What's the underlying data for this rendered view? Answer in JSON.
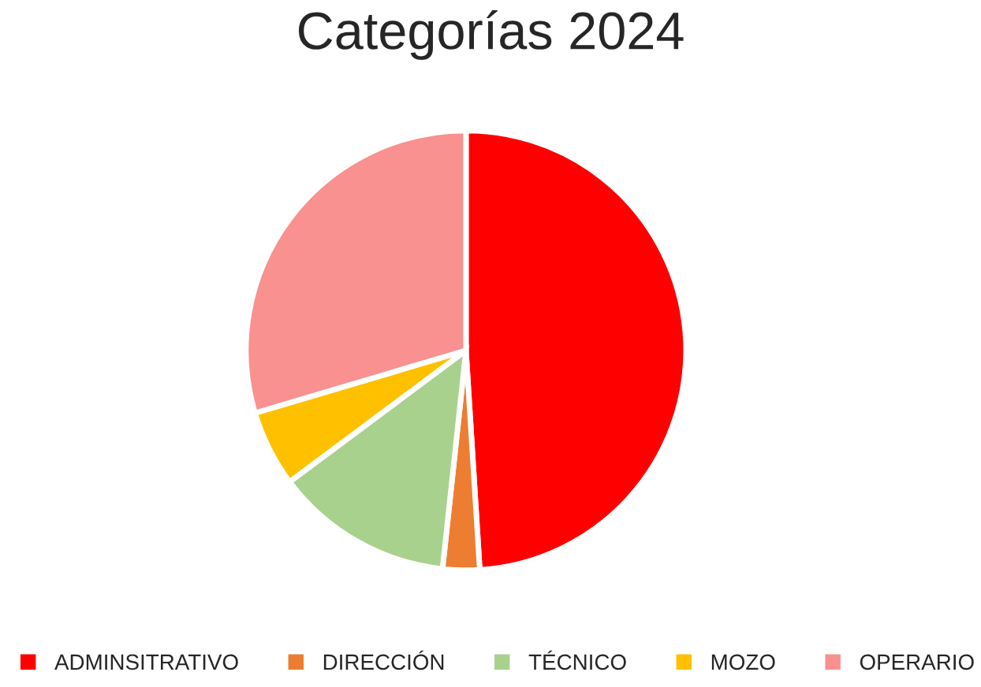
{
  "chart_data": {
    "type": "pie",
    "title": "Categorías 2024",
    "categories": [
      "ADMINSITRATIVO",
      "DIRECCIÓN",
      "TÉCNICO",
      "MOZO",
      "OPERARIO"
    ],
    "values": [
      49,
      2.7,
      13.1,
      5.6,
      29.6
    ],
    "colors": [
      "#ff0000",
      "#ed7d31",
      "#a9d18e",
      "#ffc000",
      "#f8918f"
    ],
    "legend": "bottom"
  }
}
